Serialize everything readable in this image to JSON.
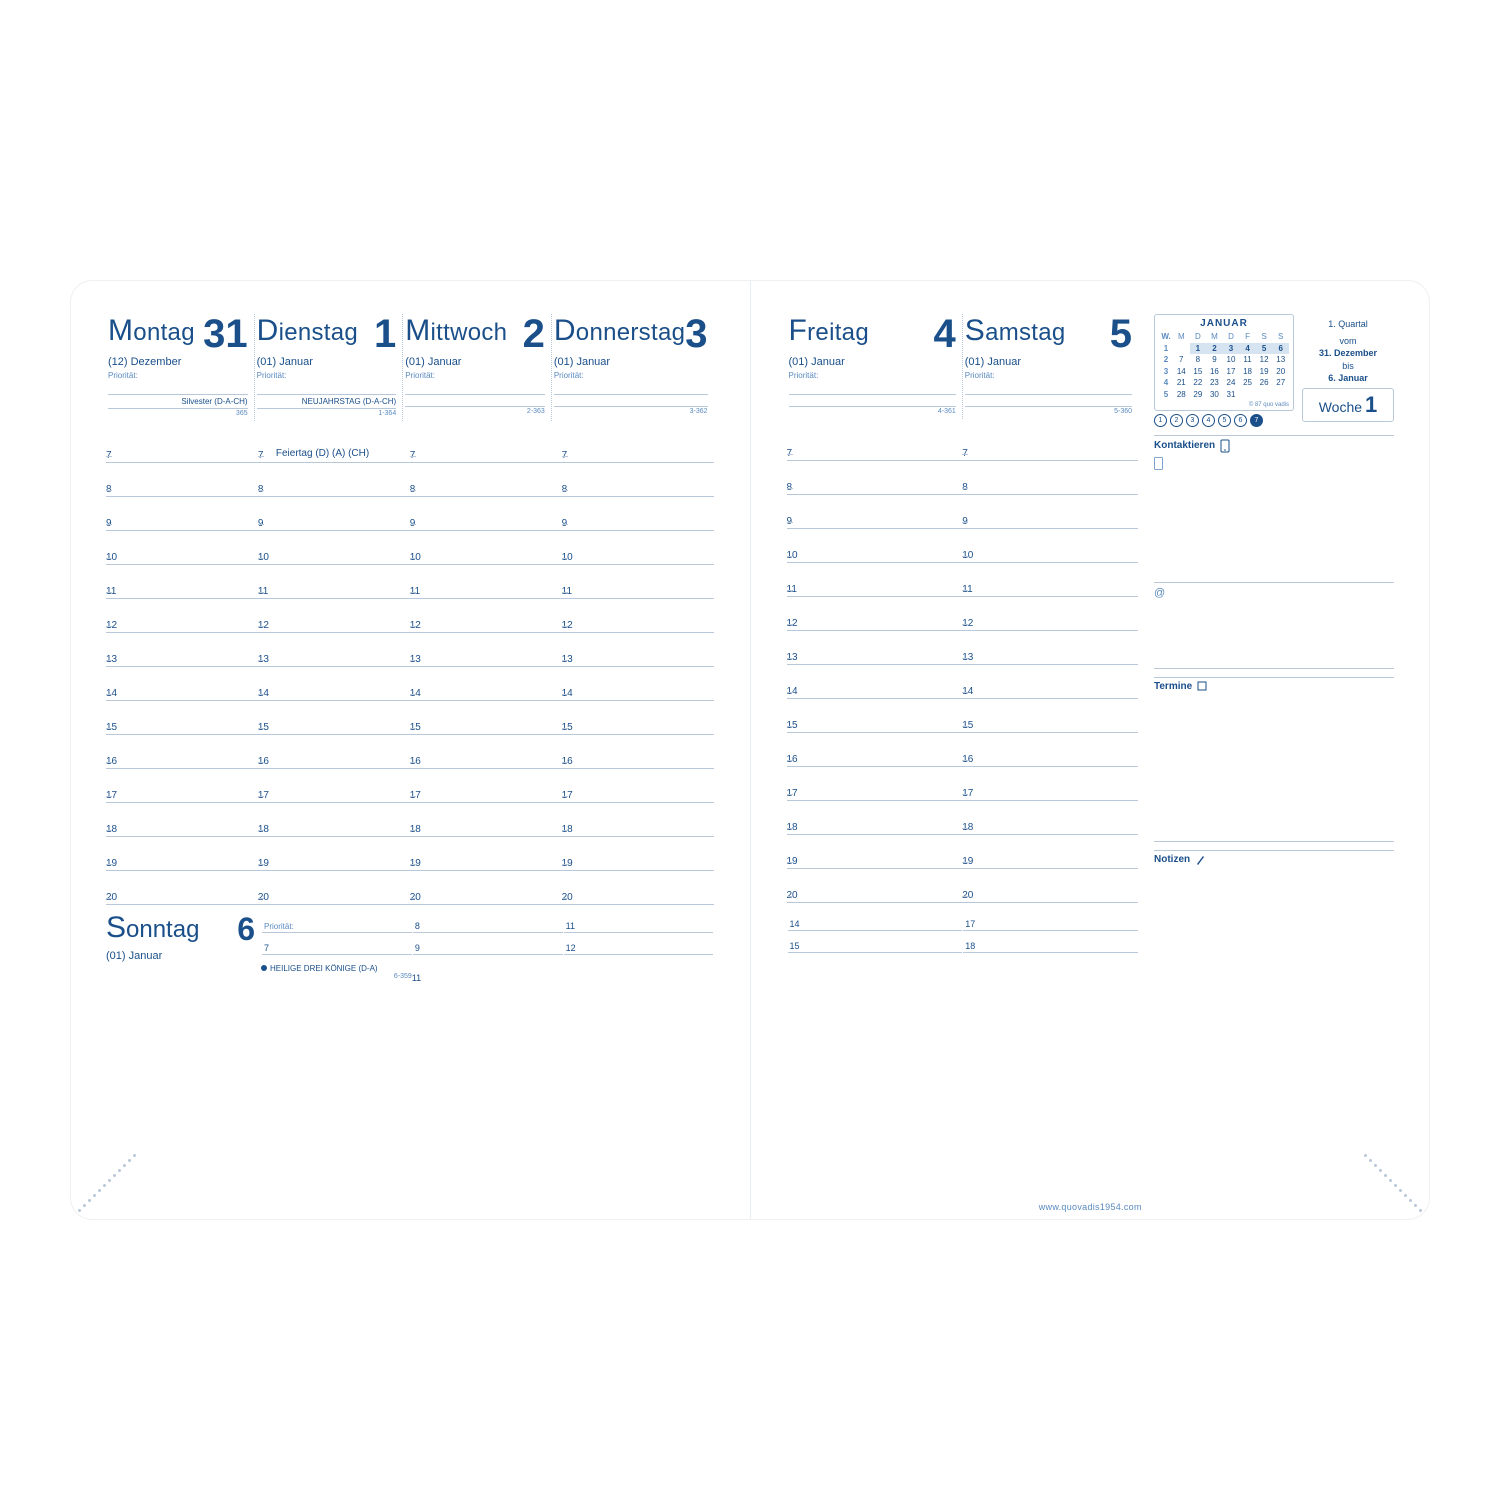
{
  "colors": {
    "ink": "#1a4f8a",
    "ink_light": "#5a8abf",
    "rule": "#b8c8d8",
    "page_bg": "#ffffff"
  },
  "hours": [
    7,
    8,
    9,
    10,
    11,
    12,
    13,
    14,
    15,
    16,
    17,
    18,
    19,
    20
  ],
  "left": {
    "days": [
      {
        "name": "Montag",
        "num": "31",
        "sub": "(12) Dezember",
        "prio": "Priorität:",
        "event": "Silvester (D-A-CH)",
        "daynum": "365"
      },
      {
        "name": "Dienstag",
        "num": "1",
        "sub": "(01) Januar",
        "prio": "Priorität:",
        "event": "NEUJAHRSTAG (D-A-CH)",
        "daynum": "1-364"
      },
      {
        "name": "Mittwoch",
        "num": "2",
        "sub": "(01) Januar",
        "prio": "Priorität:",
        "event": "",
        "daynum": "2-363"
      },
      {
        "name": "Donnerstag",
        "num": "3",
        "sub": "(01) Januar",
        "prio": "Priorität:",
        "event": "",
        "daynum": "3-362"
      }
    ],
    "row_note": {
      "hour": 7,
      "col": 1,
      "text": "Feiertag (D) (A) (CH)"
    },
    "sunday": {
      "name": "Sonntag",
      "num": "6",
      "sub": "(01) Januar",
      "prio": "Priorität:",
      "event": "HEILIGE DREI KÖNIGE (D-A)",
      "daynum": "6-359",
      "cols": [
        [
          "Priorität:",
          "7"
        ],
        [
          "8",
          "9"
        ],
        [
          "11",
          "12"
        ]
      ],
      "extra_line": "10"
    }
  },
  "right": {
    "days": [
      {
        "name": "Freitag",
        "num": "4",
        "sub": "(01) Januar",
        "prio": "Priorität:",
        "event": "",
        "daynum": "4-361"
      },
      {
        "name": "Samstag",
        "num": "5",
        "sub": "(01) Januar",
        "prio": "Priorität:",
        "event": "",
        "daynum": "5-360"
      }
    ],
    "sunday_ext": {
      "cols": [
        [
          "14",
          "15"
        ],
        [
          "17",
          "18"
        ]
      ],
      "extra": [
        "16",
        "19"
      ]
    }
  },
  "sidebar": {
    "minical": {
      "title": "JANUAR",
      "weekdays": [
        "W.",
        "M",
        "D",
        "M",
        "D",
        "F",
        "S",
        "S"
      ],
      "rows": [
        {
          "wk": "1",
          "days": [
            "1",
            "2",
            "3",
            "4",
            "5",
            "6"
          ],
          "hl": [
            0,
            1,
            2,
            3,
            4,
            5
          ]
        },
        {
          "wk": "2",
          "days": [
            "7",
            "8",
            "9",
            "10",
            "11",
            "12",
            "13"
          ],
          "hl": []
        },
        {
          "wk": "3",
          "days": [
            "14",
            "15",
            "16",
            "17",
            "18",
            "19",
            "20"
          ],
          "hl": []
        },
        {
          "wk": "4",
          "days": [
            "21",
            "22",
            "23",
            "24",
            "25",
            "26",
            "27"
          ],
          "hl": []
        },
        {
          "wk": "5",
          "days": [
            "28",
            "29",
            "30",
            "31",
            "",
            "",
            ""
          ],
          "hl": []
        }
      ],
      "foot": "© 87 quo vadis",
      "circles": [
        "1",
        "2",
        "3",
        "4",
        "5",
        "6",
        "7"
      ],
      "circle_fill": 6
    },
    "meta": {
      "quarter": "1. Quartal",
      "range_pre": "vom",
      "range1": "31. Dezember",
      "range_mid": "bis",
      "range2": "6. Januar"
    },
    "woche": {
      "label": "Woche",
      "num": "1"
    },
    "sections": [
      {
        "title": "Kontaktieren",
        "icon": "phone"
      },
      {
        "title": "Termine",
        "icon": "square"
      },
      {
        "title": "Notizen",
        "icon": "pen"
      }
    ],
    "at": "@"
  },
  "footer": "www.quovadis1954.com"
}
